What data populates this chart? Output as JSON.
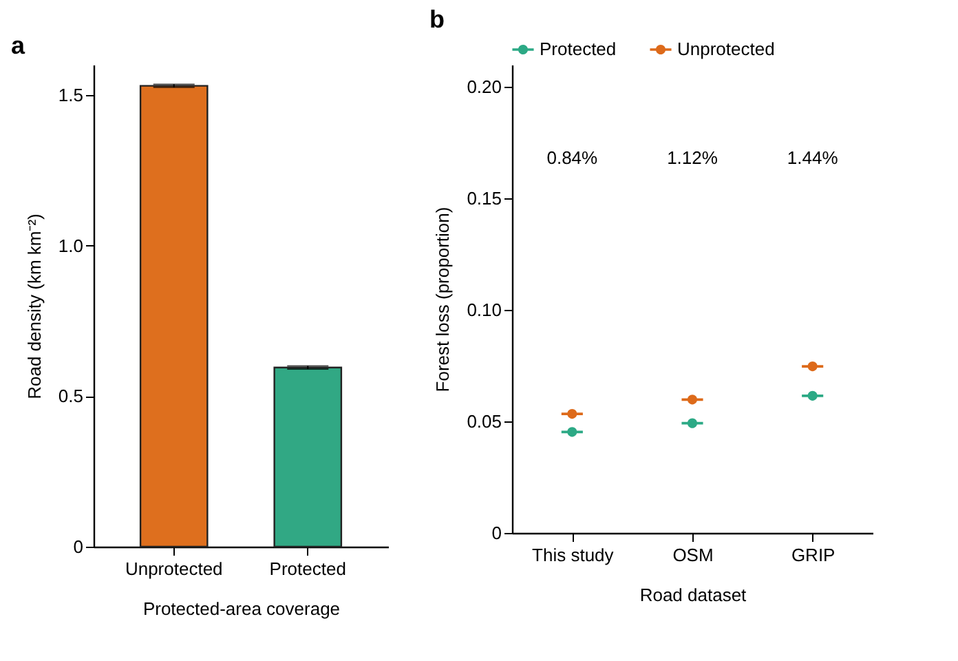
{
  "chart_data": [
    {
      "type": "bar",
      "title": "a",
      "xlabel": "Protected-area coverage",
      "ylabel": "Road density (km km⁻²)",
      "categories": [
        "Unprotected",
        "Protected"
      ],
      "colors": [
        "#de6f1e",
        "#31a884"
      ],
      "values": [
        1.53,
        0.595
      ],
      "errors": [
        0.005,
        0.005
      ],
      "ylim": [
        0,
        1.6
      ],
      "yticks": [
        0,
        0.5,
        {
          "value": 1,
          "label": "1.0"
        },
        1.5
      ]
    },
    {
      "type": "scatter",
      "title": "b",
      "xlabel": "Road dataset",
      "ylabel": "Forest loss (proportion)",
      "categories": [
        "This study",
        "OSM",
        "GRIP"
      ],
      "series": [
        {
          "name": "Protected",
          "color": "#2ca985",
          "values": [
            0.0453,
            0.0492,
            0.0615
          ]
        },
        {
          "name": "Unprotected",
          "color": "#dd6a1a",
          "values": [
            0.0534,
            0.0598,
            0.0747
          ]
        }
      ],
      "legend": "top",
      "marker": "circle",
      "ylim": [
        0,
        0.21
      ],
      "yticks": [
        0,
        0.05,
        {
          "value": 0.1,
          "label": "0.10"
        },
        0.15,
        {
          "value": 0.2,
          "label": "0.20"
        }
      ],
      "annotations": [
        "0.84%",
        "1.12%",
        "1.44%"
      ]
    }
  ]
}
